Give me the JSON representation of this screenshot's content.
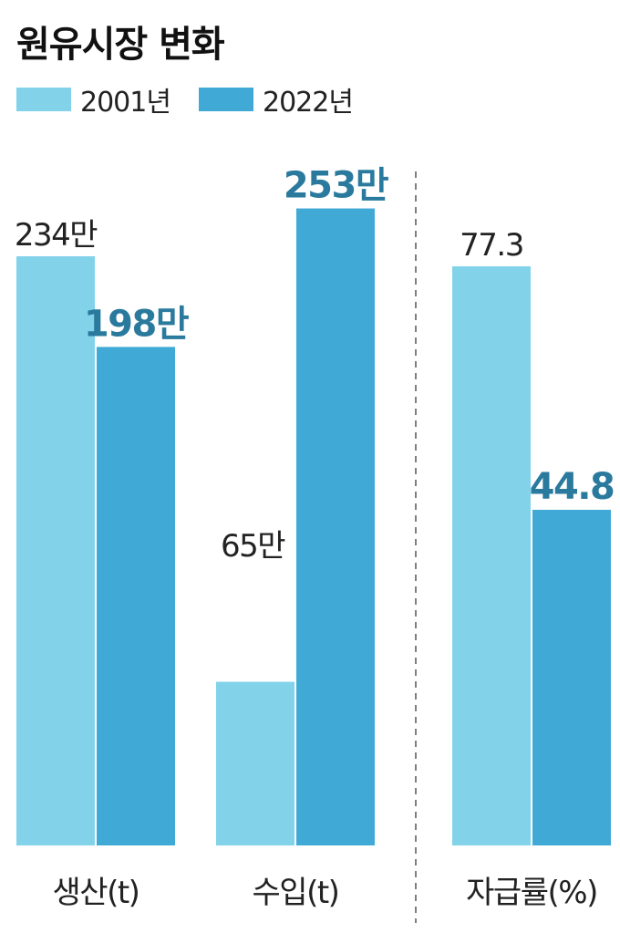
{
  "title": "원유시장 변화",
  "legend": [
    {
      "label": "2001년",
      "color": "#82d3ea"
    },
    {
      "label": "2022년",
      "color": "#41a9d6"
    }
  ],
  "colors": {
    "series_2001": "#82d3ea",
    "series_2022": "#41a9d6",
    "label_2001": "#222222",
    "label_2022": "#2a7a9e",
    "divider": "#555555"
  },
  "chart_data": [
    {
      "type": "bar",
      "categories": [
        "생산(t)",
        "수입(t)"
      ],
      "series": [
        {
          "name": "2001년",
          "values": [
            2340000,
            650000
          ],
          "labels": [
            "234만",
            "65만"
          ]
        },
        {
          "name": "2022년",
          "values": [
            1980000,
            2530000
          ],
          "labels": [
            "198만",
            "253만"
          ]
        }
      ],
      "ylim": [
        0,
        2800000
      ],
      "grid": false,
      "legend_position": "top-left"
    },
    {
      "type": "bar",
      "categories": [
        "자급률(%)"
      ],
      "series": [
        {
          "name": "2001년",
          "values": [
            77.3
          ],
          "labels": [
            "77.3"
          ]
        },
        {
          "name": "2022년",
          "values": [
            44.8
          ],
          "labels": [
            "44.8"
          ]
        }
      ],
      "ylim": [
        0,
        100
      ],
      "grid": false,
      "legend_position": "top-left"
    }
  ]
}
